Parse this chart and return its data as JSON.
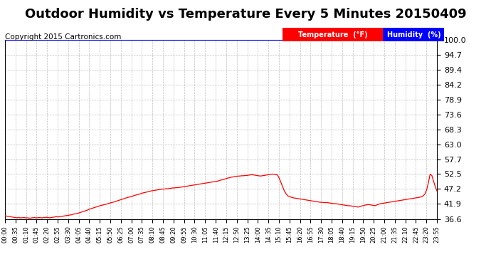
{
  "title": "Outdoor Humidity vs Temperature Every 5 Minutes 20150409",
  "copyright": "Copyright 2015 Cartronics.com",
  "legend_temp": "Temperature  (°F)",
  "legend_hum": "Humidity  (%)",
  "ylim": [
    36.6,
    100.0
  ],
  "yticks": [
    36.6,
    41.9,
    47.2,
    52.5,
    57.7,
    63.0,
    68.3,
    73.6,
    78.9,
    84.2,
    89.4,
    94.7,
    100.0
  ],
  "bg_color": "#ffffff",
  "plot_bg": "#ffffff",
  "grid_color": "#b0b0b0",
  "temp_color": "#ff0000",
  "hum_color": "#0000ff",
  "top_line_color": "#0000ff",
  "title_fontsize": 13,
  "copyright_fontsize": 7.5,
  "ytick_fontsize": 8,
  "xtick_fontsize": 6,
  "xtick_labels": [
    "00:00",
    "00:35",
    "01:10",
    "01:45",
    "02:20",
    "02:55",
    "03:30",
    "04:05",
    "04:40",
    "05:15",
    "05:50",
    "06:25",
    "07:00",
    "07:35",
    "08:10",
    "08:45",
    "09:20",
    "09:55",
    "10:30",
    "11:05",
    "11:40",
    "12:15",
    "12:50",
    "13:25",
    "14:00",
    "14:35",
    "15:10",
    "15:45",
    "16:20",
    "16:55",
    "17:30",
    "18:05",
    "18:40",
    "19:15",
    "19:50",
    "20:25",
    "21:00",
    "21:35",
    "22:10",
    "22:45",
    "23:20",
    "23:55"
  ],
  "temp_data": [
    37.8,
    37.6,
    37.5,
    37.4,
    37.3,
    37.2,
    37.1,
    37.0,
    37.1,
    37.0,
    37.0,
    37.1,
    37.0,
    37.0,
    36.9,
    36.9,
    37.0,
    37.1,
    37.0,
    37.0,
    37.1,
    37.0,
    37.0,
    37.1,
    37.2,
    37.1,
    37.0,
    37.1,
    37.2,
    37.3,
    37.4,
    37.3,
    37.4,
    37.5,
    37.6,
    37.7,
    37.8,
    37.9,
    38.0,
    38.1,
    38.3,
    38.4,
    38.5,
    38.7,
    38.9,
    39.1,
    39.3,
    39.5,
    39.7,
    40.0,
    40.2,
    40.4,
    40.6,
    40.8,
    41.0,
    41.2,
    41.4,
    41.5,
    41.7,
    41.8,
    42.0,
    42.2,
    42.4,
    42.5,
    42.7,
    42.9,
    43.1,
    43.3,
    43.5,
    43.7,
    43.9,
    44.1,
    44.3,
    44.4,
    44.6,
    44.8,
    45.0,
    45.2,
    45.3,
    45.5,
    45.7,
    45.9,
    46.0,
    46.2,
    46.3,
    46.5,
    46.6,
    46.7,
    46.8,
    46.9,
    47.0,
    47.1,
    47.2,
    47.2,
    47.3,
    47.3,
    47.4,
    47.5,
    47.6,
    47.6,
    47.7,
    47.7,
    47.8,
    47.9,
    48.0,
    48.1,
    48.2,
    48.3,
    48.4,
    48.5,
    48.6,
    48.7,
    48.8,
    48.9,
    49.0,
    49.1,
    49.2,
    49.3,
    49.4,
    49.5,
    49.6,
    49.7,
    49.8,
    49.9,
    50.0,
    50.2,
    50.4,
    50.5,
    50.7,
    50.9,
    51.1,
    51.2,
    51.4,
    51.5,
    51.6,
    51.7,
    51.8,
    51.8,
    51.9,
    51.9,
    52.0,
    52.0,
    52.1,
    52.2,
    52.3,
    52.2,
    52.1,
    52.0,
    51.9,
    51.8,
    51.9,
    52.0,
    52.1,
    52.2,
    52.3,
    52.4,
    52.5,
    52.4,
    52.3,
    52.2,
    51.0,
    49.5,
    48.0,
    46.5,
    45.5,
    44.8,
    44.5,
    44.3,
    44.1,
    44.0,
    43.9,
    43.8,
    43.7,
    43.6,
    43.5,
    43.4,
    43.3,
    43.2,
    43.1,
    43.0,
    42.9,
    42.8,
    42.7,
    42.6,
    42.5,
    42.5,
    42.4,
    42.4,
    42.4,
    42.3,
    42.2,
    42.1,
    42.0,
    42.0,
    41.9,
    41.8,
    41.7,
    41.6,
    41.5,
    41.4,
    41.3,
    41.3,
    41.2,
    41.1,
    41.0,
    40.9,
    40.8,
    41.0,
    41.2,
    41.3,
    41.5,
    41.6,
    41.7,
    41.6,
    41.5,
    41.4,
    41.3,
    41.6,
    41.8,
    42.0,
    42.1,
    42.2,
    42.3,
    42.4,
    42.5,
    42.6,
    42.7,
    42.8,
    42.9,
    43.0,
    43.1,
    43.2,
    43.3,
    43.4,
    43.5,
    43.6,
    43.7,
    43.8,
    43.9,
    44.0,
    44.1,
    44.2,
    44.3,
    44.5,
    44.8,
    45.5,
    47.0,
    49.5,
    52.5,
    52.0,
    50.0,
    48.0,
    46.5
  ]
}
